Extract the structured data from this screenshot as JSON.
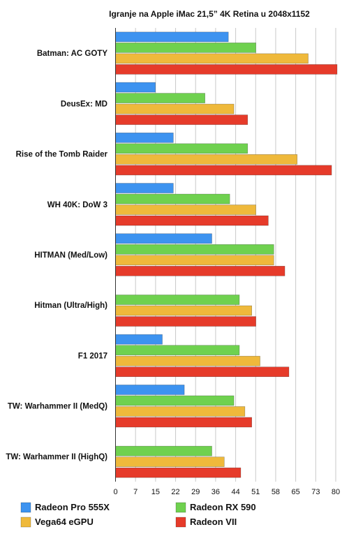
{
  "chart_data": {
    "type": "bar",
    "orientation": "horizontal",
    "title": "Igranje na Apple iMac 21,5” 4K Retina u 2048x1152",
    "xlabel": "",
    "ylabel": "",
    "xlim": [
      0,
      80
    ],
    "ticks": [
      "0",
      "7",
      "15",
      "22",
      "29",
      "36",
      "44",
      "51",
      "58",
      "65",
      "73",
      "80"
    ],
    "tick_values": [
      0,
      7.27,
      14.55,
      21.82,
      29.09,
      36.36,
      43.64,
      50.91,
      58.18,
      65.45,
      72.73,
      80
    ],
    "grid": true,
    "legend_position": "bottom",
    "categories": [
      "Batman: AC GOTY",
      "DeusEx: MD",
      "Rise of the Tomb Raider",
      "WH 40K: DoW 3",
      "HITMAN (Med/Low)",
      "Hitman (Ultra/High)",
      "F1 2017",
      "TW: Warhammer II (MedQ)",
      "TW: Warhammer II (HighQ)"
    ],
    "series": [
      {
        "name": "Radeon Pro 555X",
        "color": "#3d93f0",
        "values": [
          41,
          14.5,
          21,
          21,
          35,
          null,
          17,
          25,
          null
        ]
      },
      {
        "name": "Radeon RX 590",
        "color": "#6fd14f",
        "values": [
          51,
          32.5,
          48,
          41.5,
          57.5,
          45,
          45,
          43,
          35
        ]
      },
      {
        "name": "Vega64 eGPU",
        "color": "#efb93b",
        "values": [
          70,
          43,
          66,
          51,
          57.5,
          49.5,
          52.5,
          47,
          39.5
        ]
      },
      {
        "name": "Radeon VII",
        "color": "#e63b2a",
        "values": [
          80.5,
          48,
          78.5,
          55.5,
          61.5,
          51,
          63,
          49.5,
          45.5
        ]
      }
    ]
  }
}
